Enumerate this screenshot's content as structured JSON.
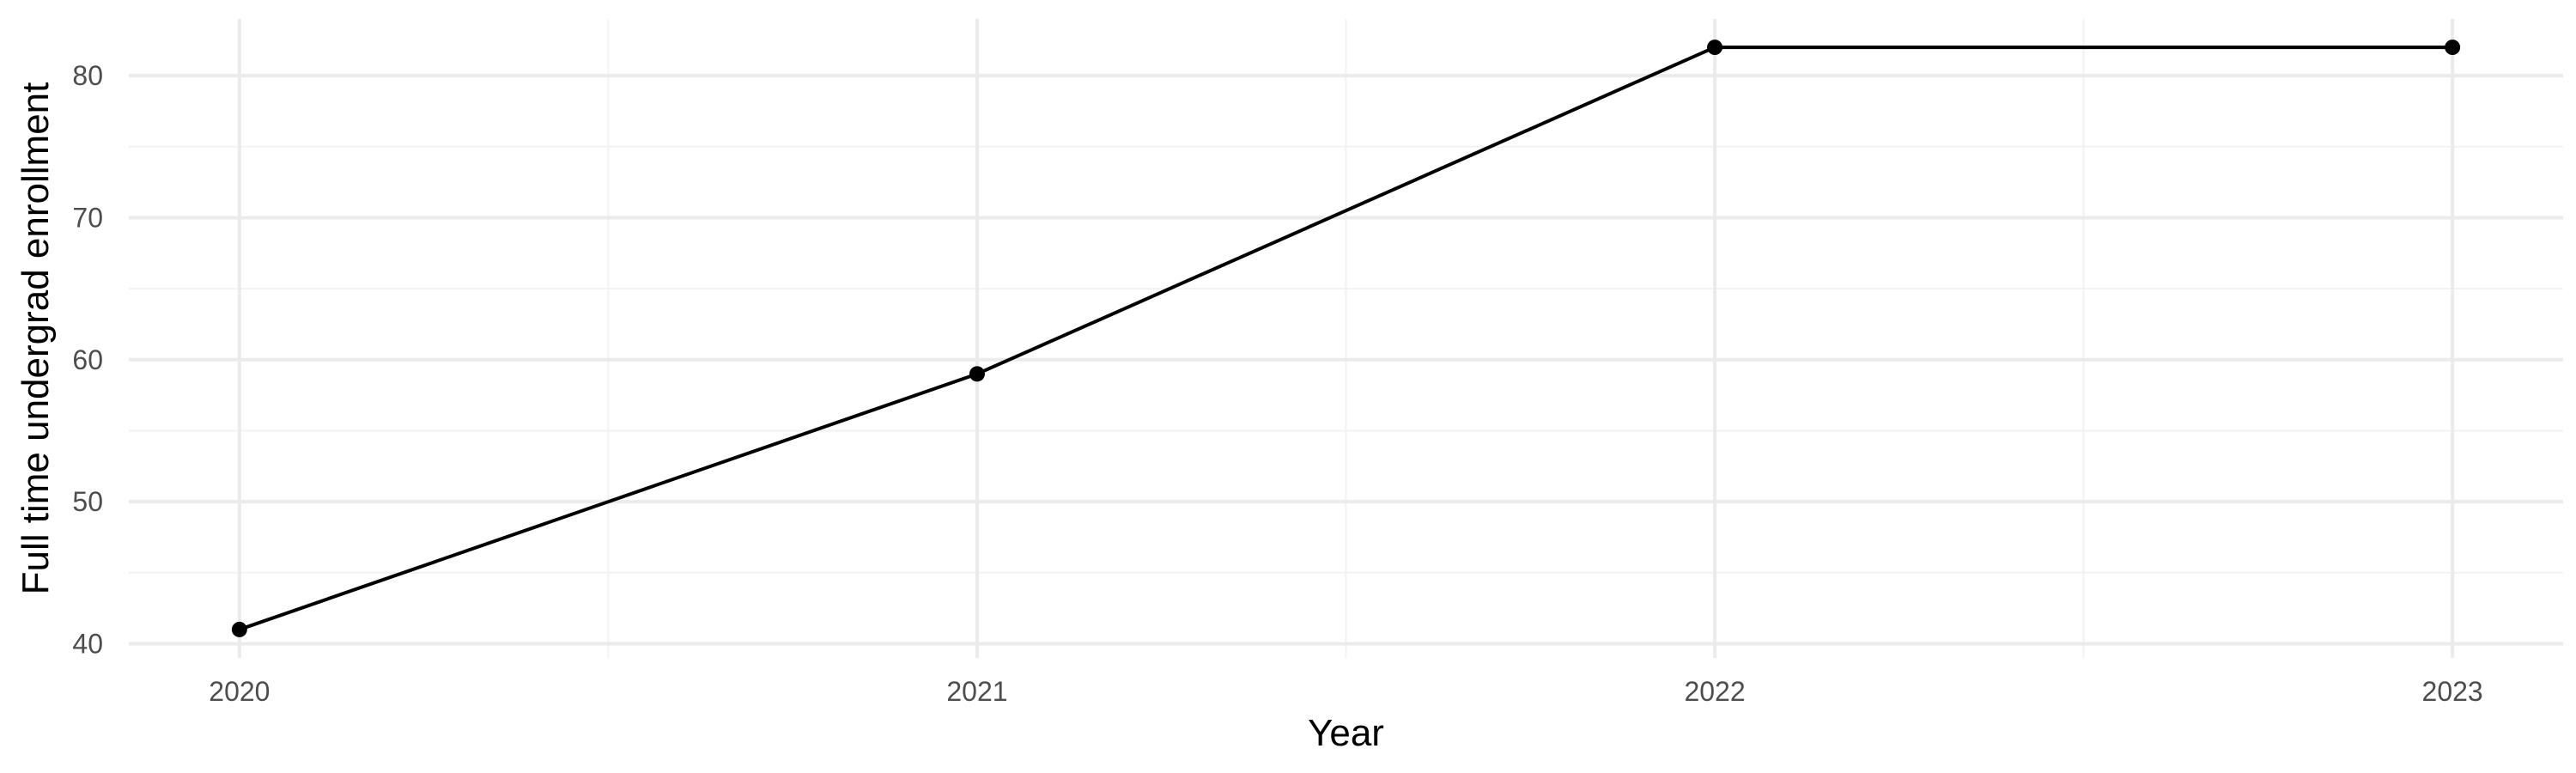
{
  "chart_data": {
    "type": "line",
    "title": "",
    "xlabel": "Year",
    "ylabel": "Full time undergrad enrollment",
    "x": [
      2020,
      2021,
      2022,
      2023
    ],
    "series": [
      {
        "values": [
          41,
          59,
          82,
          82
        ],
        "color": "#000000"
      }
    ],
    "xlim": [
      2019.85,
      2023.15
    ],
    "ylim": [
      39,
      84
    ],
    "x_ticks": [
      "2020",
      "2021",
      "2022",
      "2023"
    ],
    "y_ticks": [
      40,
      50,
      60,
      70,
      80
    ],
    "y_tick_labels": [
      "40",
      "50",
      "60",
      "70",
      "80"
    ],
    "grid": true,
    "legend": "none"
  }
}
